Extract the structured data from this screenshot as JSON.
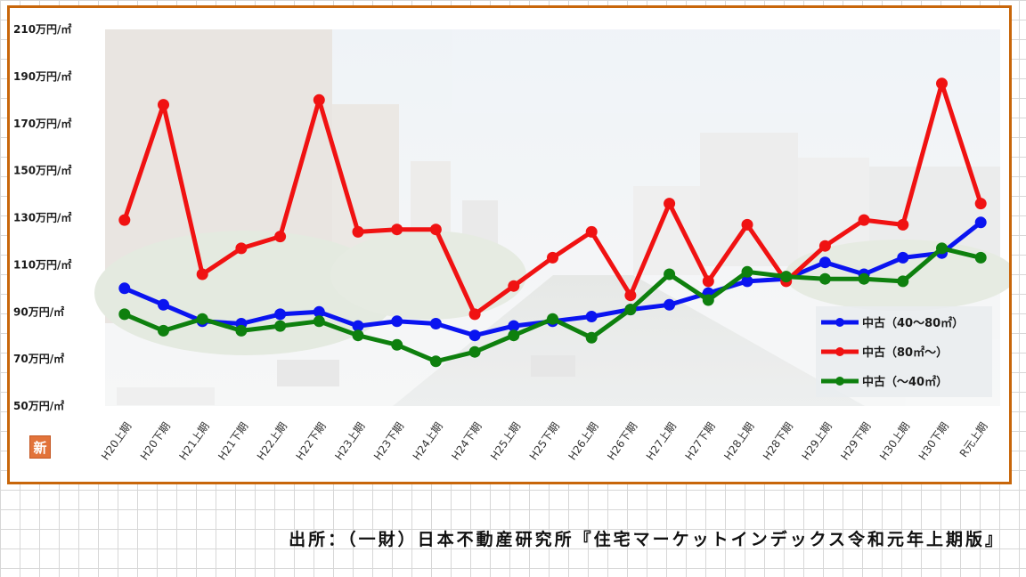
{
  "badge": {
    "text": "新"
  },
  "source_note": "出所：（一財）日本不動産研究所『住宅マーケットインデックス令和元年上期版』",
  "chart_data": {
    "type": "line",
    "title": "",
    "xlabel": "",
    "ylabel": "",
    "ylim": [
      50,
      210
    ],
    "y_ticks": [
      50,
      70,
      90,
      110,
      130,
      150,
      170,
      190,
      210
    ],
    "y_tick_labels": [
      "50万円/㎡",
      "70万円/㎡",
      "90万円/㎡",
      "110万円/㎡",
      "130万円/㎡",
      "150万円/㎡",
      "170万円/㎡",
      "190万円/㎡",
      "210万円/㎡"
    ],
    "categories": [
      "H20上期",
      "H20下期",
      "H21上期",
      "H21下期",
      "H22上期",
      "H22下期",
      "H23上期",
      "H23下期",
      "H24上期",
      "H24下期",
      "H25上期",
      "H25下期",
      "H26上期",
      "H26下期",
      "H27上期",
      "H27下期",
      "H28上期",
      "H28下期",
      "H29上期",
      "H29下期",
      "H30上期",
      "H30下期",
      "R元上期"
    ],
    "series": [
      {
        "name": "中古（40～80㎡）",
        "color": "#0a14f0",
        "values": [
          100,
          93,
          86,
          85,
          89,
          90,
          84,
          86,
          85,
          80,
          84,
          86,
          88,
          91,
          93,
          98,
          103,
          104,
          111,
          106,
          113,
          115,
          128
        ]
      },
      {
        "name": "中古（80㎡～）",
        "color": "#f01212",
        "values": [
          129,
          178,
          106,
          117,
          122,
          180,
          124,
          125,
          125,
          89,
          101,
          113,
          124,
          97,
          136,
          103,
          127,
          103,
          118,
          129,
          127,
          187,
          136
        ]
      },
      {
        "name": "中古（～40㎡）",
        "color": "#0e800e",
        "values": [
          89,
          82,
          87,
          82,
          84,
          86,
          80,
          76,
          69,
          73,
          80,
          87,
          79,
          91,
          106,
          95,
          107,
          105,
          104,
          104,
          103,
          117,
          113
        ]
      }
    ],
    "grid": false,
    "legend_position": "bottom-right"
  }
}
